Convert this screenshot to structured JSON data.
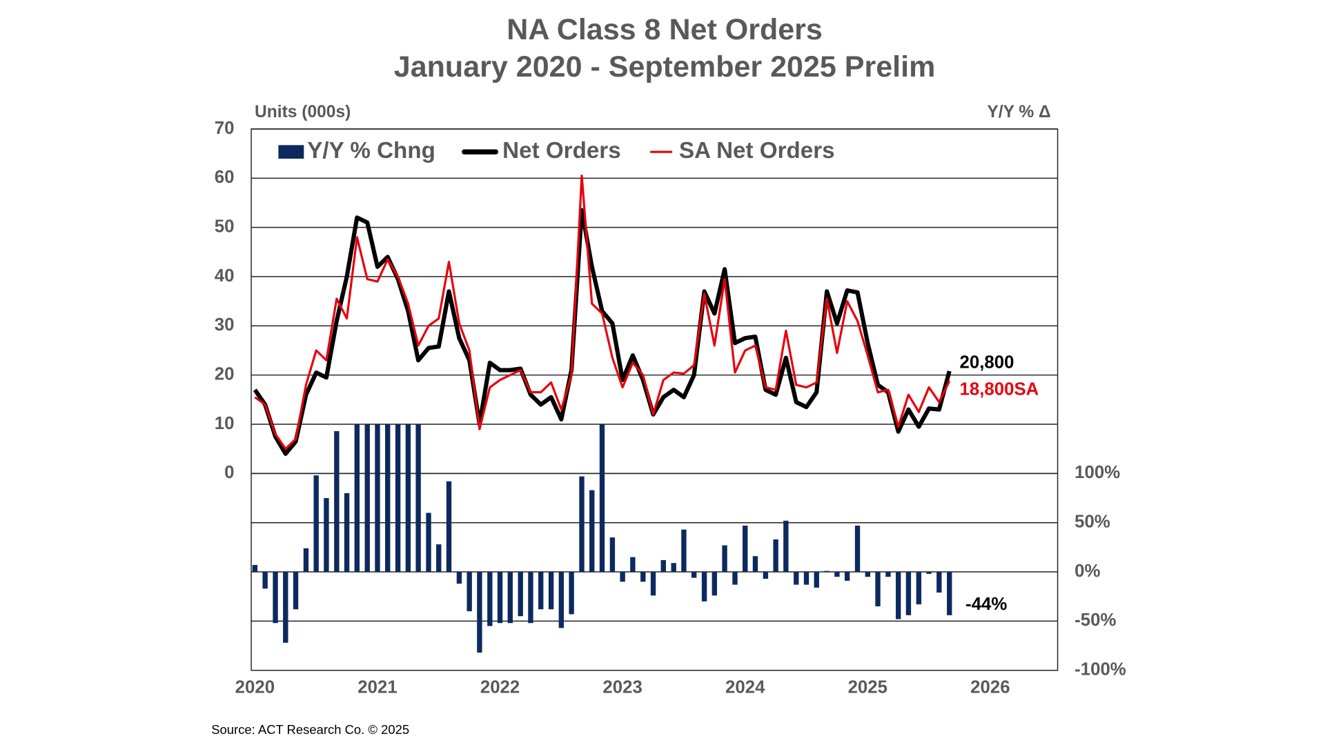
{
  "chart_data": {
    "type": "combo",
    "title": "NA Class 8 Net Orders",
    "subtitle": "January 2020 - September 2025 Prelim",
    "y_label": "Units (000s)",
    "y2_label": "Y/Y % Δ",
    "source": "Source: ACT Research Co. © 2025",
    "x": [
      2020,
      2020.083,
      2020.167,
      2020.25,
      2020.333,
      2020.417,
      2020.5,
      2020.583,
      2020.667,
      2020.75,
      2020.833,
      2020.917,
      2021,
      2021.083,
      2021.167,
      2021.25,
      2021.333,
      2021.417,
      2021.5,
      2021.583,
      2021.667,
      2021.75,
      2021.833,
      2021.917,
      2022,
      2022.083,
      2022.167,
      2022.25,
      2022.333,
      2022.417,
      2022.5,
      2022.583,
      2022.667,
      2022.75,
      2022.833,
      2022.917,
      2023,
      2023.083,
      2023.167,
      2023.25,
      2023.333,
      2023.417,
      2023.5,
      2023.583,
      2023.667,
      2023.75,
      2023.833,
      2023.917,
      2024,
      2024.083,
      2024.167,
      2024.25,
      2024.333,
      2024.417,
      2024.5,
      2024.583,
      2024.667,
      2024.75,
      2024.833,
      2024.917,
      2025,
      2025.083,
      2025.167,
      2025.25,
      2025.333,
      2025.417,
      2025.5,
      2025.583,
      2025.667
    ],
    "series": [
      {
        "name": "Y/Y % Chng",
        "type": "bar",
        "axis": "y2",
        "color": "#0d2a5e",
        "end_label": "-44%",
        "values": [
          7,
          -17,
          -52,
          -72,
          -38,
          24,
          98,
          75,
          143,
          80,
          150,
          150,
          150,
          150,
          150,
          150,
          150,
          60,
          28,
          92,
          -12,
          -40,
          -82,
          -55,
          -52,
          -52,
          -45,
          -52,
          -38,
          -38,
          -57,
          -43,
          97,
          83,
          150,
          35,
          -10,
          15,
          -10,
          -24,
          12,
          9,
          43,
          -6,
          -30,
          -24,
          27,
          -13,
          47,
          16,
          -7,
          33,
          52,
          -13,
          -13,
          -16,
          1,
          -5,
          -9,
          47,
          -5,
          -35,
          -5,
          -48,
          -44,
          -33,
          -2,
          -21,
          -44
        ]
      },
      {
        "name": "Net Orders",
        "type": "line",
        "color": "#000000",
        "end_label": "20,800",
        "values": [
          17,
          14,
          7.5,
          4,
          6.5,
          16,
          20.5,
          19.5,
          31,
          40,
          52,
          51,
          42,
          44,
          39.5,
          33,
          23,
          25.5,
          25.8,
          37,
          27.5,
          23,
          10,
          22.5,
          21,
          21,
          21.3,
          16,
          14,
          15.5,
          11,
          21,
          53.5,
          42,
          33,
          30.5,
          19,
          24,
          19,
          12,
          15.5,
          17,
          15.5,
          20,
          37,
          32.5,
          41.5,
          26.5,
          27.5,
          27.8,
          17,
          16,
          23.5,
          14.5,
          13.5,
          16.5,
          37,
          30.5,
          37.2,
          36.8,
          26.5,
          18,
          16.5,
          8.5,
          13,
          9.5,
          13.2,
          13,
          20.8
        ]
      },
      {
        "name": "SA Net Orders",
        "type": "line",
        "color": "#e8000b",
        "end_label": "18,800SA",
        "values": [
          15.5,
          14,
          8,
          5,
          7,
          18,
          25,
          23,
          35.5,
          31.5,
          48,
          39.5,
          39,
          43.5,
          40,
          34.5,
          26,
          30,
          31.5,
          43,
          30.5,
          25,
          9,
          17.5,
          19,
          20,
          21,
          16.5,
          16.5,
          18.5,
          13,
          20,
          60.5,
          34.5,
          32.5,
          23.5,
          17.5,
          22.5,
          20,
          12,
          19,
          20.5,
          20.3,
          22,
          36.5,
          26,
          39.5,
          20.5,
          25,
          26,
          17.5,
          17,
          29,
          18,
          17.5,
          18.5,
          35.5,
          24.5,
          35,
          31,
          24,
          16.5,
          17,
          9.5,
          16,
          12.5,
          17.5,
          14.5,
          18.8
        ]
      }
    ],
    "xlim": [
      2019.97,
      2026.55
    ],
    "xticks": [
      2020,
      2021,
      2022,
      2023,
      2024,
      2025,
      2026
    ],
    "ylim": [
      -40,
      70
    ],
    "yticks": [
      0,
      10,
      20,
      30,
      40,
      50,
      60,
      70
    ],
    "y2lim": [
      -100,
      450
    ],
    "y2ticks": [
      {
        "value": -100,
        "label": "-100%"
      },
      {
        "value": -50,
        "label": "-50%"
      },
      {
        "value": 0,
        "label": "0%"
      },
      {
        "value": 50,
        "label": "50%"
      },
      {
        "value": 100,
        "label": "100%"
      }
    ],
    "grid": true,
    "legend": "top-left"
  }
}
